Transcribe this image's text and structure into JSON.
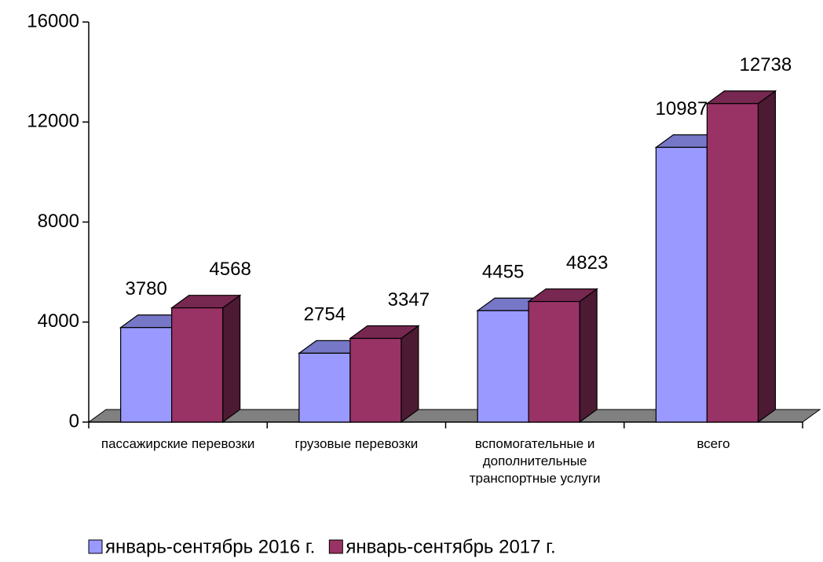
{
  "chart_data": {
    "type": "bar3d",
    "categories": [
      "пассажирские перевозки",
      "грузовые перевозки",
      "вспомогательные и дополнительные транспортные услуги",
      "всего"
    ],
    "series": [
      {
        "name": "январь-сентябрь 2016 г.",
        "color": "#9999ff",
        "values": [
          3780,
          2754,
          4455,
          10987
        ]
      },
      {
        "name": "январь-сентябрь 2017 г.",
        "color": "#993366",
        "values": [
          4568,
          3347,
          4823,
          12738
        ]
      }
    ],
    "ylim": [
      0,
      16000
    ],
    "yticks": [
      0,
      4000,
      8000,
      12000,
      16000
    ]
  }
}
